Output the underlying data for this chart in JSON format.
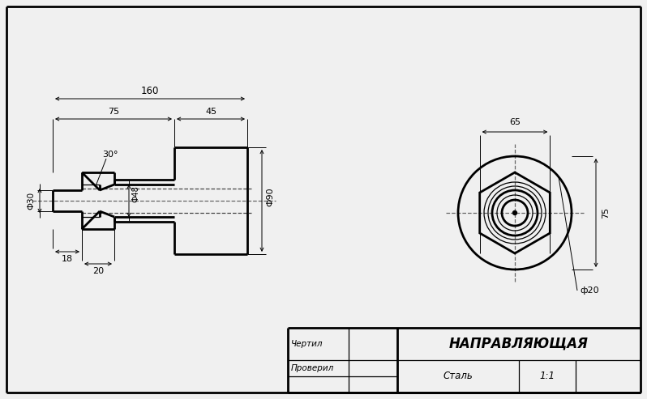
{
  "bg_color": "#f0f0f0",
  "line_color": "#000000",
  "title_text": "НАПРАВЛЯЮЩАЯ",
  "material_text": "Сталь",
  "scale_text": "1:1",
  "chertil_text": "Чертил",
  "proveril_text": "Проверил",
  "dim_30": "30°",
  "dim_phi30": "Ф30",
  "dim_phi48": "Ф48",
  "dim_phi90": "Ф90",
  "dim_phi20": "ф20",
  "dim_18": "18",
  "dim_20": "20",
  "dim_75": "75",
  "dim_45": "45",
  "dim_160": "160",
  "dim_75r": "75",
  "dim_65": "65"
}
